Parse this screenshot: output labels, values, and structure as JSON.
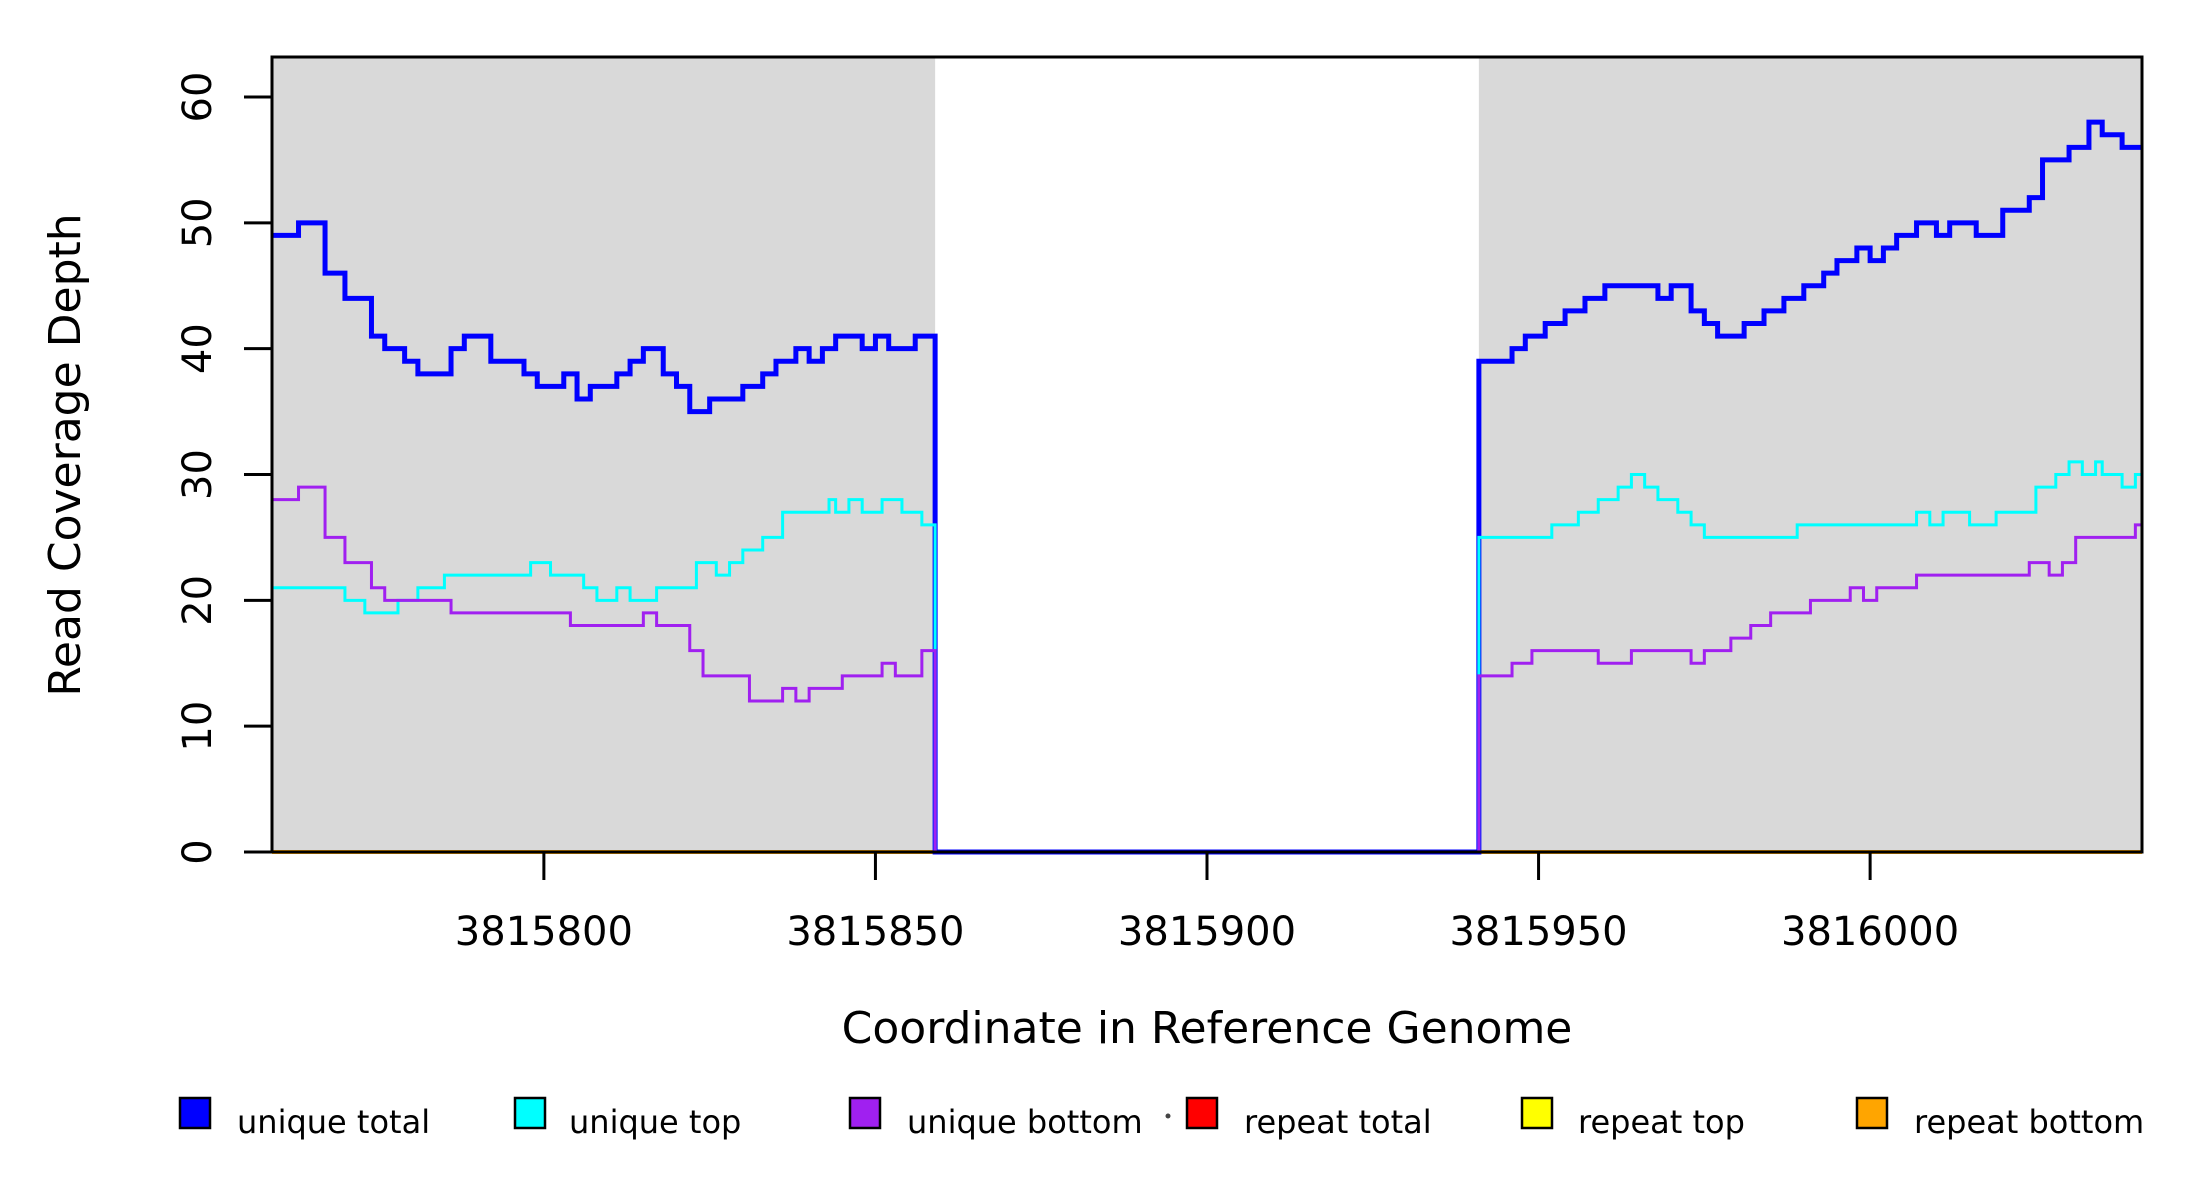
{
  "chart_data": {
    "type": "step-line",
    "title": "",
    "xlabel": "Coordinate in Reference Genome",
    "ylabel": "Read Coverage Depth",
    "x_range": [
      3815759,
      3816041
    ],
    "y_range": [
      0,
      63
    ],
    "x_ticks": [
      "3815800",
      "3815850",
      "3815900",
      "3815950",
      "3816000"
    ],
    "x_tick_values": [
      3815800,
      3815850,
      3815900,
      3815950,
      3816000
    ],
    "y_ticks": [
      "0",
      "10",
      "20",
      "30",
      "40",
      "50",
      "60"
    ],
    "y_tick_values": [
      0,
      10,
      20,
      30,
      40,
      50,
      60
    ],
    "grid": "off",
    "background_color": "#ffffff",
    "shade_color": "#d9d9d9",
    "shaded_regions": [
      [
        3815759,
        3815859
      ],
      [
        3815941,
        3816041
      ]
    ],
    "gap_region": [
      3815859,
      3815941
    ],
    "series": [
      {
        "name": "repeat total",
        "color": "#ff0000",
        "line_width": 4,
        "points": [
          [
            3815759,
            0
          ]
        ]
      },
      {
        "name": "repeat top",
        "color": "#ffff00",
        "line_width": 4,
        "points": [
          [
            3815759,
            0
          ]
        ]
      },
      {
        "name": "repeat bottom",
        "color": "#ffa500",
        "line_width": 4,
        "points": [
          [
            3815759,
            0
          ]
        ]
      },
      {
        "name": "unique total",
        "color": "#0000ff",
        "line_width": 5,
        "points": [
          [
            3815759,
            49
          ],
          [
            3815763,
            50
          ],
          [
            3815767,
            46
          ],
          [
            3815770,
            44
          ],
          [
            3815774,
            41
          ],
          [
            3815776,
            40
          ],
          [
            3815779,
            39
          ],
          [
            3815781,
            38
          ],
          [
            3815786,
            40
          ],
          [
            3815788,
            41
          ],
          [
            3815792,
            39
          ],
          [
            3815797,
            38
          ],
          [
            3815799,
            37
          ],
          [
            3815803,
            38
          ],
          [
            3815805,
            36
          ],
          [
            3815807,
            37
          ],
          [
            3815811,
            38
          ],
          [
            3815813,
            39
          ],
          [
            3815815,
            40
          ],
          [
            3815818,
            38
          ],
          [
            3815820,
            37
          ],
          [
            3815822,
            35
          ],
          [
            3815825,
            36
          ],
          [
            3815830,
            37
          ],
          [
            3815833,
            38
          ],
          [
            3815835,
            39
          ],
          [
            3815838,
            40
          ],
          [
            3815840,
            39
          ],
          [
            3815842,
            40
          ],
          [
            3815844,
            41
          ],
          [
            3815848,
            40
          ],
          [
            3815850,
            41
          ],
          [
            3815852,
            40
          ],
          [
            3815856,
            41
          ],
          [
            3815859,
            0
          ],
          [
            3815941,
            39
          ],
          [
            3815946,
            40
          ],
          [
            3815948,
            41
          ],
          [
            3815951,
            42
          ],
          [
            3815954,
            43
          ],
          [
            3815957,
            44
          ],
          [
            3815960,
            45
          ],
          [
            3815968,
            44
          ],
          [
            3815970,
            45
          ],
          [
            3815973,
            43
          ],
          [
            3815975,
            42
          ],
          [
            3815977,
            41
          ],
          [
            3815981,
            42
          ],
          [
            3815984,
            43
          ],
          [
            3815987,
            44
          ],
          [
            3815990,
            45
          ],
          [
            3815993,
            46
          ],
          [
            3815995,
            47
          ],
          [
            3815998,
            48
          ],
          [
            3816000,
            47
          ],
          [
            3816002,
            48
          ],
          [
            3816004,
            49
          ],
          [
            3816007,
            50
          ],
          [
            3816010,
            49
          ],
          [
            3816012,
            50
          ],
          [
            3816016,
            49
          ],
          [
            3816020,
            51
          ],
          [
            3816024,
            52
          ],
          [
            3816026,
            55
          ],
          [
            3816030,
            56
          ],
          [
            3816033,
            58
          ],
          [
            3816035,
            57
          ],
          [
            3816038,
            56
          ]
        ]
      },
      {
        "name": "unique top",
        "color": "#00ffff",
        "line_width": 3,
        "points": [
          [
            3815759,
            21
          ],
          [
            3815770,
            20
          ],
          [
            3815773,
            19
          ],
          [
            3815778,
            20
          ],
          [
            3815781,
            21
          ],
          [
            3815785,
            22
          ],
          [
            3815798,
            23
          ],
          [
            3815801,
            22
          ],
          [
            3815806,
            21
          ],
          [
            3815808,
            20
          ],
          [
            3815811,
            21
          ],
          [
            3815813,
            20
          ],
          [
            3815817,
            21
          ],
          [
            3815823,
            23
          ],
          [
            3815826,
            22
          ],
          [
            3815828,
            23
          ],
          [
            3815830,
            24
          ],
          [
            3815833,
            25
          ],
          [
            3815836,
            27
          ],
          [
            3815843,
            28
          ],
          [
            3815844,
            27
          ],
          [
            3815846,
            28
          ],
          [
            3815848,
            27
          ],
          [
            3815851,
            28
          ],
          [
            3815854,
            27
          ],
          [
            3815857,
            26
          ],
          [
            3815859,
            0
          ],
          [
            3815941,
            25
          ],
          [
            3815952,
            26
          ],
          [
            3815956,
            27
          ],
          [
            3815959,
            28
          ],
          [
            3815962,
            29
          ],
          [
            3815964,
            30
          ],
          [
            3815966,
            29
          ],
          [
            3815968,
            28
          ],
          [
            3815971,
            27
          ],
          [
            3815973,
            26
          ],
          [
            3815975,
            25
          ],
          [
            3815989,
            26
          ],
          [
            3816007,
            27
          ],
          [
            3816009,
            26
          ],
          [
            3816011,
            27
          ],
          [
            3816015,
            26
          ],
          [
            3816019,
            27
          ],
          [
            3816025,
            29
          ],
          [
            3816028,
            30
          ],
          [
            3816030,
            31
          ],
          [
            3816032,
            30
          ],
          [
            3816034,
            31
          ],
          [
            3816035,
            30
          ],
          [
            3816038,
            29
          ],
          [
            3816040,
            30
          ]
        ]
      },
      {
        "name": "unique bottom",
        "color": "#a020f0",
        "line_width": 3,
        "points": [
          [
            3815759,
            28
          ],
          [
            3815763,
            29
          ],
          [
            3815767,
            25
          ],
          [
            3815770,
            23
          ],
          [
            3815774,
            21
          ],
          [
            3815776,
            20
          ],
          [
            3815786,
            19
          ],
          [
            3815804,
            18
          ],
          [
            3815815,
            19
          ],
          [
            3815817,
            18
          ],
          [
            3815822,
            16
          ],
          [
            3815824,
            14
          ],
          [
            3815831,
            12
          ],
          [
            3815836,
            13
          ],
          [
            3815838,
            12
          ],
          [
            3815840,
            13
          ],
          [
            3815845,
            14
          ],
          [
            3815851,
            15
          ],
          [
            3815853,
            14
          ],
          [
            3815857,
            16
          ],
          [
            3815859,
            0
          ],
          [
            3815941,
            14
          ],
          [
            3815946,
            15
          ],
          [
            3815949,
            16
          ],
          [
            3815959,
            15
          ],
          [
            3815964,
            16
          ],
          [
            3815973,
            15
          ],
          [
            3815975,
            16
          ],
          [
            3815979,
            17
          ],
          [
            3815982,
            18
          ],
          [
            3815985,
            19
          ],
          [
            3815991,
            20
          ],
          [
            3815997,
            21
          ],
          [
            3815999,
            20
          ],
          [
            3816001,
            21
          ],
          [
            3816007,
            22
          ],
          [
            3816024,
            23
          ],
          [
            3816027,
            22
          ],
          [
            3816029,
            23
          ],
          [
            3816031,
            25
          ],
          [
            3816040,
            26
          ]
        ]
      }
    ],
    "legend": {
      "position": "bottom",
      "items": [
        {
          "label": "unique total",
          "color": "#0000ff"
        },
        {
          "label": "unique top",
          "color": "#00ffff"
        },
        {
          "label": "unique bottom",
          "color": "#a020f0"
        },
        {
          "label": "repeat total",
          "color": "#ff0000"
        },
        {
          "label": "repeat top",
          "color": "#ffff00"
        },
        {
          "label": "repeat bottom",
          "color": "#ffa500"
        }
      ]
    }
  }
}
